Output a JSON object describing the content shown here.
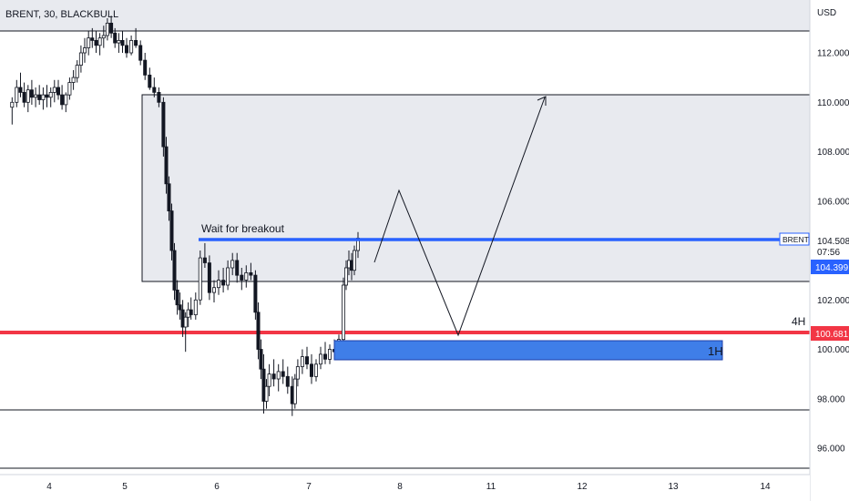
{
  "chart_data": {
    "type": "candlestick",
    "title": "BRENT, 30, BLACKBULL",
    "currency": "USD",
    "symbol_label": "BRENT",
    "last_price": "104.508",
    "countdown": "07:56",
    "ylim": [
      94.3,
      115.2
    ],
    "y_ticks": [
      {
        "value": 112,
        "label": "112.000"
      },
      {
        "value": 110,
        "label": "110.000"
      },
      {
        "value": 108,
        "label": "108.000"
      },
      {
        "value": 106,
        "label": "106.000"
      },
      {
        "value": 102,
        "label": "102.000"
      },
      {
        "value": 100,
        "label": "100.000"
      },
      {
        "value": 98,
        "label": "98.000"
      },
      {
        "value": 96,
        "label": "96.000"
      }
    ],
    "x_ticks": [
      "4",
      "5",
      "6",
      "7",
      "8",
      "11",
      "12",
      "13",
      "14"
    ],
    "price_tags": [
      {
        "value": 104.399,
        "label": "104.399",
        "color": "#2962ff"
      },
      {
        "value": 100.681,
        "label": "100.681",
        "color": "#f23645"
      }
    ],
    "horizontal_lines": [
      {
        "value": 112.95,
        "color": "#131722"
      },
      {
        "value": 97.5,
        "color": "#131722"
      },
      {
        "value": 94.95,
        "color": "#131722"
      }
    ],
    "red_level": {
      "value": 100.681,
      "label": "4H",
      "color": "#f23645"
    },
    "blue_level": {
      "value": 104.5,
      "label": "Wait for breakout",
      "color": "#2962ff"
    },
    "zones": [
      {
        "name": "upper-gray-zone",
        "x_start": "left-edge",
        "x_end": "right-edge",
        "y_low": 112.95,
        "y_high": 115.2,
        "fill": "#e8eaef"
      },
      {
        "name": "supply-zone",
        "x_start": 5.2,
        "x_end": "right-edge",
        "y_low": 102.85,
        "y_high": 110.3,
        "fill": "#e8eaef"
      },
      {
        "name": "demand-1h-zone",
        "label": "1H",
        "x_start": 7.28,
        "x_end": 9.55,
        "y_low": 99.6,
        "y_high": 100.35,
        "fill": "#3f7ee8"
      }
    ],
    "projection_path": [
      {
        "x": 7.73,
        "y": 104.55
      },
      {
        "x": 7.98,
        "y": 106.45
      },
      {
        "x": 9.65,
        "y": 100.65
      },
      {
        "x": 11.6,
        "y": 110.45
      }
    ],
    "ohlc": [
      [
        3.51,
        109.8,
        110.2,
        109.1,
        110.0
      ],
      [
        3.57,
        110.0,
        110.9,
        109.8,
        110.6
      ],
      [
        3.62,
        110.6,
        111.2,
        110.2,
        110.4
      ],
      [
        3.67,
        110.4,
        110.8,
        109.8,
        110.0
      ],
      [
        3.72,
        110.0,
        110.7,
        109.6,
        110.5
      ],
      [
        3.77,
        110.5,
        110.9,
        109.9,
        110.2
      ],
      [
        3.82,
        110.2,
        110.6,
        109.8,
        110.3
      ],
      [
        3.87,
        110.3,
        110.7,
        109.9,
        110.1
      ],
      [
        3.92,
        110.1,
        110.6,
        109.7,
        110.3
      ],
      [
        3.97,
        110.3,
        110.7,
        109.8,
        110.2
      ],
      [
        4.02,
        110.2,
        110.6,
        109.8,
        110.4
      ],
      [
        4.07,
        110.4,
        110.9,
        110.0,
        110.6
      ],
      [
        4.12,
        110.6,
        110.9,
        110.1,
        110.3
      ],
      [
        4.17,
        110.3,
        110.7,
        109.7,
        109.9
      ],
      [
        4.22,
        109.9,
        110.4,
        109.6,
        110.3
      ],
      [
        4.27,
        110.3,
        111.0,
        110.1,
        110.8
      ],
      [
        4.32,
        110.8,
        111.3,
        110.5,
        111.0
      ],
      [
        4.37,
        111.0,
        111.7,
        110.8,
        111.5
      ],
      [
        4.42,
        111.5,
        112.3,
        111.2,
        112.0
      ],
      [
        4.47,
        112.0,
        112.6,
        111.6,
        112.2
      ],
      [
        4.52,
        112.2,
        112.9,
        111.9,
        112.6
      ],
      [
        4.57,
        112.6,
        113.0,
        112.2,
        112.5
      ],
      [
        4.62,
        112.5,
        112.9,
        112.0,
        112.3
      ],
      [
        4.67,
        112.3,
        112.8,
        111.9,
        112.6
      ],
      [
        4.72,
        112.6,
        113.1,
        112.2,
        112.7
      ],
      [
        4.77,
        112.7,
        113.4,
        112.5,
        113.2
      ],
      [
        4.82,
        113.2,
        113.5,
        112.6,
        112.8
      ],
      [
        4.87,
        112.8,
        113.0,
        112.2,
        112.4
      ],
      [
        4.92,
        112.4,
        112.8,
        112.0,
        112.5
      ],
      [
        4.97,
        112.5,
        112.9,
        112.0,
        112.3
      ],
      [
        5.02,
        112.3,
        112.6,
        111.8,
        112.0
      ],
      [
        5.07,
        112.0,
        112.7,
        111.9,
        112.5
      ],
      [
        5.12,
        112.5,
        113.0,
        112.2,
        112.3
      ],
      [
        5.17,
        112.3,
        112.5,
        111.5,
        111.7
      ],
      [
        5.22,
        111.7,
        112.0,
        110.9,
        111.1
      ],
      [
        5.27,
        111.1,
        111.4,
        110.5,
        110.6
      ],
      [
        5.32,
        110.6,
        111.0,
        110.2,
        110.4
      ],
      [
        5.37,
        110.4,
        110.6,
        109.8,
        110.0
      ],
      [
        5.42,
        110.0,
        110.2,
        107.8,
        108.2
      ],
      [
        5.45,
        108.2,
        108.6,
        106.3,
        106.7
      ],
      [
        5.48,
        106.7,
        107.0,
        105.2,
        105.6
      ],
      [
        5.51,
        105.6,
        105.9,
        103.6,
        104.0
      ],
      [
        5.54,
        104.0,
        104.3,
        102.0,
        102.4
      ],
      [
        5.57,
        102.4,
        102.8,
        101.4,
        101.8
      ],
      [
        5.6,
        101.8,
        102.3,
        101.2,
        101.6
      ],
      [
        5.63,
        101.6,
        102.0,
        100.5,
        100.9
      ],
      [
        5.66,
        100.9,
        101.5,
        99.9,
        101.3
      ],
      [
        5.69,
        101.3,
        101.9,
        100.9,
        101.6
      ],
      [
        5.72,
        101.6,
        102.1,
        101.2,
        101.4
      ],
      [
        5.77,
        101.4,
        102.3,
        101.2,
        102.0
      ],
      [
        5.82,
        102.0,
        104.0,
        101.8,
        103.7
      ],
      [
        5.87,
        103.7,
        104.3,
        103.3,
        103.5
      ],
      [
        5.92,
        103.5,
        103.8,
        102.0,
        102.3
      ],
      [
        5.97,
        102.3,
        102.8,
        101.9,
        102.5
      ],
      [
        6.02,
        102.5,
        103.2,
        102.2,
        102.8
      ],
      [
        6.07,
        102.8,
        103.3,
        102.3,
        102.6
      ],
      [
        6.12,
        102.6,
        103.6,
        102.4,
        103.3
      ],
      [
        6.17,
        103.3,
        103.9,
        103.0,
        103.6
      ],
      [
        6.22,
        103.6,
        103.9,
        102.7,
        103.0
      ],
      [
        6.27,
        103.0,
        103.3,
        102.4,
        102.8
      ],
      [
        6.32,
        102.8,
        103.4,
        102.5,
        103.1
      ],
      [
        6.37,
        103.1,
        103.5,
        102.8,
        103.0
      ],
      [
        6.42,
        103.0,
        103.2,
        101.2,
        101.5
      ],
      [
        6.45,
        101.5,
        101.9,
        99.6,
        100.0
      ],
      [
        6.48,
        100.0,
        100.4,
        98.8,
        99.2
      ],
      [
        6.51,
        99.2,
        99.8,
        97.4,
        97.9
      ],
      [
        6.54,
        97.9,
        98.8,
        97.6,
        98.5
      ],
      [
        6.57,
        98.5,
        99.4,
        98.1,
        99.0
      ],
      [
        6.62,
        99.0,
        99.6,
        98.5,
        98.8
      ],
      [
        6.67,
        98.8,
        99.4,
        98.3,
        99.1
      ],
      [
        6.72,
        99.1,
        99.6,
        98.6,
        98.9
      ],
      [
        6.77,
        98.9,
        99.3,
        98.2,
        98.5
      ],
      [
        6.82,
        98.5,
        98.9,
        97.3,
        97.8
      ],
      [
        6.85,
        97.8,
        99.0,
        97.6,
        98.8
      ],
      [
        6.88,
        98.8,
        99.6,
        98.5,
        99.3
      ],
      [
        6.93,
        99.3,
        100.0,
        99.0,
        99.7
      ],
      [
        6.98,
        99.7,
        100.1,
        99.2,
        99.4
      ],
      [
        7.03,
        99.4,
        99.8,
        98.6,
        98.9
      ],
      [
        7.08,
        98.9,
        99.6,
        98.7,
        99.4
      ],
      [
        7.13,
        99.4,
        100.1,
        99.2,
        99.8
      ],
      [
        7.18,
        99.8,
        100.3,
        99.4,
        99.6
      ],
      [
        7.23,
        99.6,
        100.2,
        99.4,
        100.0
      ],
      [
        7.28,
        100.0,
        100.4,
        99.6,
        99.9
      ],
      [
        7.33,
        99.9,
        100.6,
        99.8,
        100.4
      ],
      [
        7.38,
        100.4,
        102.9,
        100.3,
        102.6
      ],
      [
        7.41,
        102.6,
        103.6,
        102.4,
        103.3
      ],
      [
        7.44,
        103.3,
        104.0,
        103.0,
        103.6
      ],
      [
        7.47,
        103.6,
        103.9,
        102.8,
        103.2
      ],
      [
        7.5,
        103.2,
        104.2,
        103.0,
        104.0
      ],
      [
        7.54,
        104.0,
        104.75,
        103.7,
        104.5
      ]
    ]
  },
  "annotations": {
    "breakout_label": "Wait for breakout",
    "level_4h_label": "4H",
    "zone_1h_label": "1H"
  }
}
